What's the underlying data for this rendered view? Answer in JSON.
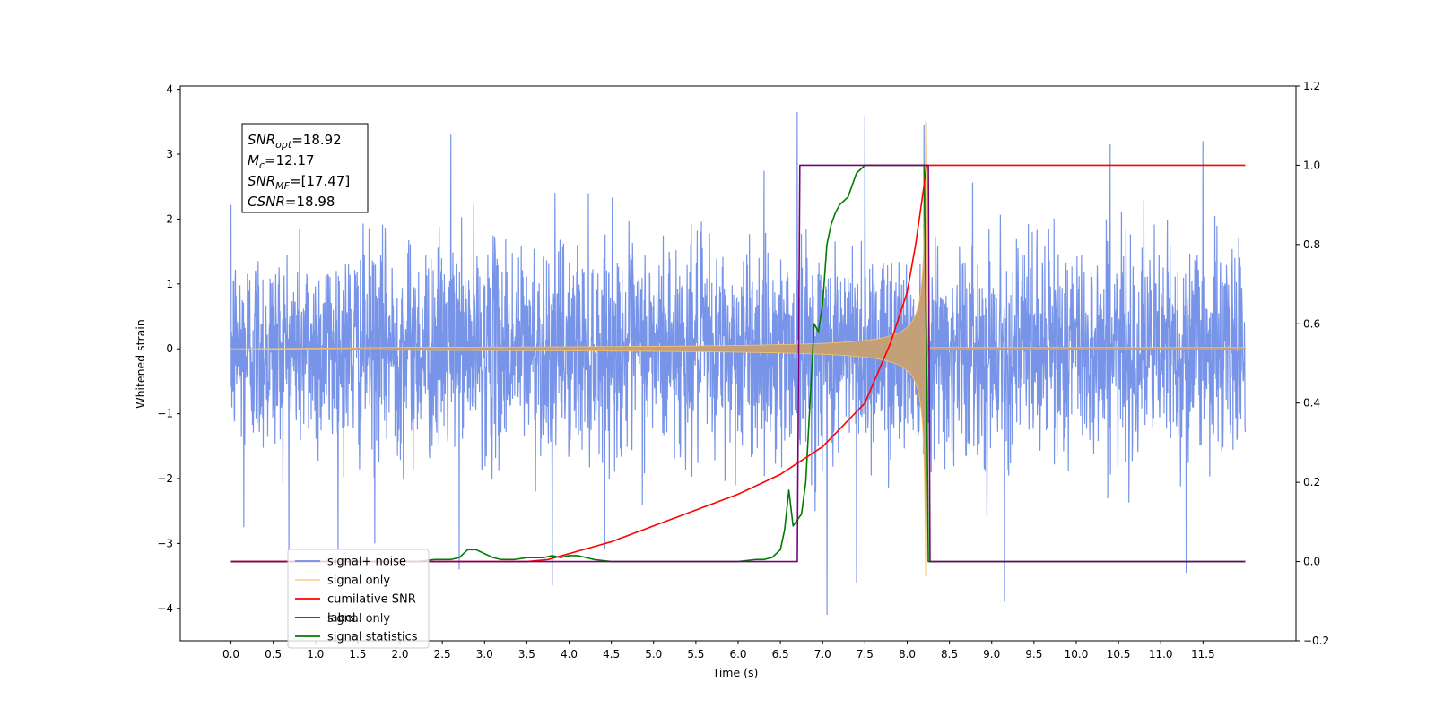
{
  "chart_data": {
    "type": "line",
    "xlabel": "Time (s)",
    "ylabel": "Whitened strain",
    "xlim": [
      -0.6,
      12.6
    ],
    "ylim": [
      -4.5,
      4.05
    ],
    "y2lim": [
      -0.2,
      1.2
    ],
    "x_ticks": [
      0.0,
      0.5,
      1.0,
      1.5,
      2.0,
      2.5,
      3.0,
      3.5,
      4.0,
      4.5,
      5.0,
      5.5,
      6.0,
      6.5,
      7.0,
      7.5,
      8.0,
      8.5,
      9.0,
      9.5,
      10.0,
      10.5,
      11.0,
      11.5
    ],
    "x_tick_labels": [
      "0.0",
      "0.5",
      "1.0",
      "1.5",
      "2.0",
      "2.5",
      "3.0",
      "3.5",
      "4.0",
      "4.5",
      "5.0",
      "5.5",
      "6.0",
      "6.5",
      "7.0",
      "7.5",
      "8.0",
      "8.5",
      "9.0",
      "9.5",
      "10.0",
      "10.5",
      "11.0",
      "11.5"
    ],
    "y_ticks": [
      -4,
      -3,
      -2,
      -1,
      0,
      1,
      2,
      3,
      4
    ],
    "y_tick_labels": [
      "−4",
      "−3",
      "−2",
      "−1",
      "0",
      "1",
      "2",
      "3",
      "4"
    ],
    "y2_ticks": [
      -0.2,
      0.0,
      0.2,
      0.4,
      0.6,
      0.8,
      1.0,
      1.2
    ],
    "y2_tick_labels": [
      "−0.2",
      "0.0",
      "0.2",
      "0.4",
      "0.6",
      "0.8",
      "1.0",
      "1.2"
    ],
    "legend_position": "lower-left",
    "grid": false,
    "series": [
      {
        "name": "signal+ noise",
        "axis": "left",
        "color": "#6d8be6",
        "x_range": [
          0.0,
          12.0
        ],
        "envelope_typical": 1.8,
        "spikes": [
          [
            2.6,
            3.3
          ],
          [
            6.7,
            3.65
          ],
          [
            7.5,
            3.6
          ],
          [
            8.2,
            3.45
          ],
          [
            10.4,
            3.15
          ],
          [
            11.5,
            3.2
          ],
          [
            3.8,
            -3.65
          ],
          [
            7.05,
            -4.1
          ],
          [
            7.4,
            -3.6
          ],
          [
            9.15,
            -3.9
          ],
          [
            11.3,
            -3.45
          ],
          [
            0.15,
            -2.75
          ],
          [
            1.7,
            -3.0
          ],
          [
            2.7,
            -3.4
          ]
        ]
      },
      {
        "name": "signal only",
        "axis": "left",
        "color": "#f7c46b",
        "chirp": {
          "start": 0.0,
          "merger": 8.23,
          "end": 12.0,
          "peak": 3.5,
          "visible_color": "#c3a078"
        }
      },
      {
        "name": "cumilative SNR",
        "axis": "right",
        "color": "#ff0000",
        "x": [
          0.0,
          3.5,
          3.75,
          4.0,
          4.5,
          5.0,
          5.5,
          6.0,
          6.5,
          7.0,
          7.5,
          7.8,
          8.0,
          8.1,
          8.2,
          8.23,
          8.25,
          12.0
        ],
        "y": [
          0.0,
          0.0,
          0.005,
          0.02,
          0.05,
          0.09,
          0.13,
          0.17,
          0.22,
          0.29,
          0.4,
          0.55,
          0.68,
          0.8,
          0.95,
          1.0,
          1.0,
          1.0
        ]
      },
      {
        "name": "label",
        "axis": "right",
        "color": "#7a007a",
        "x": [
          0.0,
          6.7,
          6.73,
          8.25,
          8.27,
          12.0
        ],
        "y": [
          0.0,
          0.0,
          1.0,
          1.0,
          0.0,
          0.0
        ]
      },
      {
        "name": "signal statistics",
        "axis": "right",
        "color": "#007a00",
        "x": [
          0.0,
          2.2,
          2.4,
          2.6,
          2.7,
          2.8,
          2.9,
          3.0,
          3.1,
          3.2,
          3.35,
          3.5,
          3.6,
          3.7,
          3.8,
          3.9,
          4.0,
          4.1,
          4.2,
          4.3,
          4.5,
          5.0,
          6.0,
          6.2,
          6.3,
          6.4,
          6.5,
          6.55,
          6.6,
          6.65,
          6.75,
          6.8,
          6.85,
          6.9,
          6.95,
          7.0,
          7.05,
          7.1,
          7.15,
          7.2,
          7.3,
          7.35,
          7.4,
          7.5,
          7.6,
          8.2,
          8.23,
          8.25,
          12.0
        ],
        "y": [
          0.0,
          0.0,
          0.005,
          0.005,
          0.01,
          0.03,
          0.03,
          0.02,
          0.01,
          0.005,
          0.005,
          0.01,
          0.01,
          0.01,
          0.015,
          0.01,
          0.015,
          0.015,
          0.01,
          0.005,
          0.0,
          0.0,
          0.0,
          0.005,
          0.005,
          0.01,
          0.03,
          0.08,
          0.18,
          0.09,
          0.12,
          0.2,
          0.4,
          0.6,
          0.58,
          0.65,
          0.8,
          0.85,
          0.88,
          0.9,
          0.92,
          0.95,
          0.98,
          1.0,
          1.0,
          1.0,
          0.5,
          0.0,
          0.0
        ]
      }
    ],
    "legend": [
      "signal+ noise",
      "signal only",
      "cumilative SNR",
      "label",
      "signal statistics"
    ],
    "ghost_legend_text": "signal only",
    "annotation": [
      {
        "base": "SNR",
        "sub": "opt",
        "rest": "=18.92"
      },
      {
        "base": "M",
        "sub": "c",
        "rest": "=12.17"
      },
      {
        "base": "SNR",
        "sub": "MF",
        "rest": "=[17.47]"
      },
      {
        "base": "CSNR",
        "sub": "",
        "rest": "=18.98"
      }
    ]
  }
}
